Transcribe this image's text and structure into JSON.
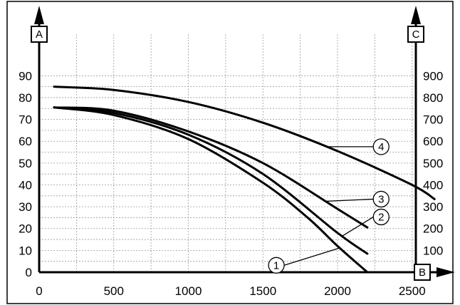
{
  "chart_data": {
    "type": "line",
    "axes": {
      "x": {
        "label": "B",
        "ticks": [
          0,
          500,
          1000,
          1500,
          2000,
          2500
        ],
        "range": [
          0,
          2700
        ]
      },
      "y_left": {
        "label": "A",
        "ticks": [
          0,
          10,
          20,
          30,
          40,
          50,
          60,
          70,
          80,
          90
        ],
        "range": [
          0,
          95
        ]
      },
      "y_right": {
        "label": "C",
        "ticks": [
          100,
          200,
          300,
          400,
          500,
          600,
          700,
          800,
          900
        ],
        "range": [
          0,
          950
        ]
      }
    },
    "grid": true,
    "series": [
      {
        "name": "1",
        "x": [
          100,
          500,
          1000,
          1500,
          1800,
          2000,
          2200
        ],
        "y": [
          75.5,
          72,
          61,
          41,
          25,
          12,
          0
        ]
      },
      {
        "name": "2",
        "x": [
          100,
          500,
          1000,
          1500,
          2000,
          2200
        ],
        "y": [
          75.5,
          73,
          63,
          45,
          18,
          8.5
        ]
      },
      {
        "name": "3",
        "x": [
          100,
          500,
          1000,
          1500,
          2000,
          2200
        ],
        "y": [
          75.5,
          74,
          64.5,
          50,
          29,
          20.5
        ]
      },
      {
        "name": "4",
        "x": [
          100,
          500,
          1000,
          1500,
          2000,
          2500,
          2650
        ],
        "y": [
          85,
          83.5,
          78,
          68.5,
          55.5,
          40,
          33.5
        ]
      }
    ],
    "callouts": [
      {
        "label": "1",
        "x": 2010,
        "y": 11
      },
      {
        "label": "2",
        "x": 2030,
        "y": 16.5
      },
      {
        "label": "3",
        "x": 1920,
        "y": 32.5
      },
      {
        "label": "4",
        "x": 1920,
        "y": 57.5
      }
    ]
  }
}
